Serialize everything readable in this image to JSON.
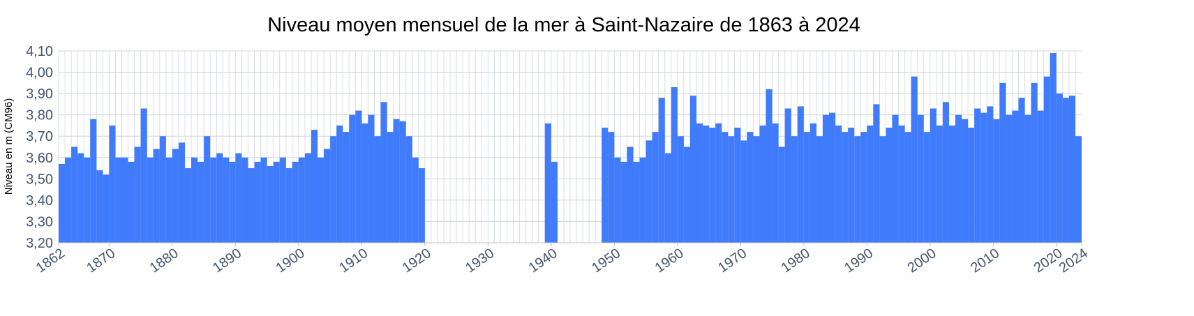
{
  "chart_data": {
    "type": "bar",
    "title": "Niveau moyen mensuel de la mer à Saint-Nazaire de 1863 à 2024",
    "y_label": "Niveau en m (CM96)",
    "color": "#3f7bfb",
    "grid": true,
    "xlim": [
      1862,
      2024
    ],
    "xticks": [
      1862,
      1870,
      1880,
      1890,
      1900,
      1910,
      1920,
      1930,
      1940,
      1950,
      1960,
      1970,
      1980,
      1990,
      2000,
      2010,
      2020,
      2024
    ],
    "ylim": [
      3.2,
      4.1
    ],
    "yticks": [
      {
        "value": 3.2,
        "label": "3,20"
      },
      {
        "value": 3.3,
        "label": "3,30"
      },
      {
        "value": 3.4,
        "label": "3,40"
      },
      {
        "value": 3.5,
        "label": "3,50"
      },
      {
        "value": 3.6,
        "label": "3,60"
      },
      {
        "value": 3.7,
        "label": "3,70"
      },
      {
        "value": 3.8,
        "label": "3,80"
      },
      {
        "value": 3.9,
        "label": "3,90"
      },
      {
        "value": 4.0,
        "label": "4,00"
      },
      {
        "value": 4.1,
        "label": "4,10"
      }
    ],
    "x": [
      1862,
      1863,
      1864,
      1865,
      1866,
      1867,
      1868,
      1869,
      1870,
      1871,
      1872,
      1873,
      1874,
      1875,
      1876,
      1877,
      1878,
      1879,
      1880,
      1881,
      1882,
      1883,
      1884,
      1885,
      1886,
      1887,
      1888,
      1889,
      1890,
      1891,
      1892,
      1893,
      1894,
      1895,
      1896,
      1897,
      1898,
      1899,
      1900,
      1901,
      1902,
      1903,
      1904,
      1905,
      1906,
      1907,
      1908,
      1909,
      1910,
      1911,
      1912,
      1913,
      1914,
      1915,
      1916,
      1917,
      1918,
      1919,
      1920,
      1921,
      1922,
      1923,
      1924,
      1925,
      1926,
      1927,
      1928,
      1929,
      1930,
      1931,
      1932,
      1933,
      1934,
      1935,
      1936,
      1937,
      1938,
      1939,
      1940,
      1941,
      1942,
      1943,
      1944,
      1945,
      1946,
      1947,
      1948,
      1949,
      1950,
      1951,
      1952,
      1953,
      1954,
      1955,
      1956,
      1957,
      1958,
      1959,
      1960,
      1961,
      1962,
      1963,
      1964,
      1965,
      1966,
      1967,
      1968,
      1969,
      1970,
      1971,
      1972,
      1973,
      1974,
      1975,
      1976,
      1977,
      1978,
      1979,
      1980,
      1981,
      1982,
      1983,
      1984,
      1985,
      1986,
      1987,
      1988,
      1989,
      1990,
      1991,
      1992,
      1993,
      1994,
      1995,
      1996,
      1997,
      1998,
      1999,
      2000,
      2001,
      2002,
      2003,
      2004,
      2005,
      2006,
      2007,
      2008,
      2009,
      2010,
      2011,
      2012,
      2013,
      2014,
      2015,
      2016,
      2017,
      2018,
      2019,
      2020,
      2021,
      2022,
      2023
    ],
    "values": [
      3.57,
      3.6,
      3.65,
      3.62,
      3.6,
      3.78,
      3.54,
      3.52,
      3.75,
      3.6,
      3.6,
      3.58,
      3.65,
      3.83,
      3.6,
      3.64,
      3.7,
      3.6,
      3.64,
      3.67,
      3.55,
      3.6,
      3.58,
      3.7,
      3.6,
      3.62,
      3.6,
      3.58,
      3.62,
      3.6,
      3.55,
      3.58,
      3.6,
      3.56,
      3.58,
      3.6,
      3.55,
      3.58,
      3.6,
      3.62,
      3.73,
      3.6,
      3.64,
      3.7,
      3.75,
      3.72,
      3.8,
      3.82,
      3.76,
      3.8,
      3.7,
      3.86,
      3.72,
      3.78,
      3.77,
      3.7,
      3.6,
      3.55,
      null,
      null,
      null,
      null,
      null,
      null,
      null,
      null,
      null,
      null,
      null,
      null,
      null,
      null,
      null,
      null,
      null,
      null,
      null,
      3.76,
      3.58,
      null,
      null,
      null,
      null,
      null,
      null,
      null,
      3.74,
      3.72,
      3.6,
      3.58,
      3.65,
      3.58,
      3.6,
      3.68,
      3.72,
      3.88,
      3.62,
      3.93,
      3.7,
      3.65,
      3.89,
      3.76,
      3.75,
      3.74,
      3.76,
      3.72,
      3.7,
      3.74,
      3.68,
      3.72,
      3.7,
      3.75,
      3.92,
      3.76,
      3.65,
      3.83,
      3.7,
      3.84,
      3.72,
      3.76,
      3.7,
      3.8,
      3.81,
      3.75,
      3.72,
      3.74,
      3.7,
      3.72,
      3.75,
      3.85,
      3.7,
      3.74,
      3.8,
      3.75,
      3.72,
      3.98,
      3.8,
      3.72,
      3.83,
      3.75,
      3.86,
      3.75,
      3.8,
      3.78,
      3.74,
      3.83,
      3.81,
      3.84,
      3.78,
      3.95,
      3.8,
      3.82,
      3.88,
      3.8,
      3.95,
      3.82,
      3.98,
      4.09,
      3.9,
      3.88,
      3.89,
      3.7
    ]
  }
}
